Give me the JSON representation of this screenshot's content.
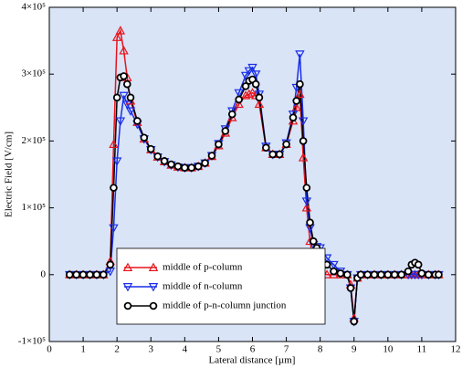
{
  "chart_data": {
    "type": "line",
    "xlabel": "Lateral distance [µm]",
    "ylabel": "Electric Field [V/cm]",
    "xlim": [
      0,
      12
    ],
    "xticks": [
      0,
      1,
      2,
      3,
      4,
      5,
      6,
      7,
      8,
      9,
      10,
      11,
      12
    ],
    "ylim": [
      -100000,
      400000
    ],
    "yticks": [
      {
        "value": -100000,
        "label": "-1×10⁵"
      },
      0,
      {
        "value": 100000,
        "label": "1×10⁵"
      },
      {
        "value": 200000,
        "label": "2×10⁵"
      },
      {
        "value": 300000,
        "label": "3×10⁵"
      },
      {
        "value": 400000,
        "label": "4×10⁵"
      }
    ],
    "legend": "lower left",
    "x": [
      0.6,
      0.8,
      1.0,
      1.2,
      1.4,
      1.6,
      1.8,
      1.9,
      2.0,
      2.1,
      2.2,
      2.3,
      2.4,
      2.6,
      2.8,
      3.0,
      3.2,
      3.4,
      3.6,
      3.8,
      4.0,
      4.2,
      4.4,
      4.6,
      4.8,
      5.0,
      5.2,
      5.4,
      5.6,
      5.8,
      5.9,
      6.0,
      6.1,
      6.2,
      6.4,
      6.6,
      6.8,
      7.0,
      7.2,
      7.3,
      7.4,
      7.5,
      7.6,
      7.7,
      7.8,
      7.9,
      8.0,
      8.2,
      8.4,
      8.6,
      8.8,
      8.9,
      9.0,
      9.1,
      9.2,
      9.4,
      9.6,
      9.8,
      10.0,
      10.2,
      10.4,
      10.6,
      10.7,
      10.8,
      10.9,
      11.0,
      11.2,
      11.4,
      11.5
    ],
    "series": [
      {
        "name": "middle of p-column",
        "color": "#e8141c",
        "marker": "triangle-up",
        "values": [
          0,
          0,
          0,
          0,
          0,
          0,
          20000,
          195000,
          355000,
          365000,
          335000,
          295000,
          260000,
          228000,
          203000,
          187000,
          176000,
          169000,
          164000,
          161000,
          160000,
          160000,
          162000,
          167000,
          177000,
          193000,
          212000,
          235000,
          255000,
          268000,
          270000,
          272000,
          268000,
          255000,
          190000,
          180000,
          180000,
          195000,
          230000,
          250000,
          270000,
          175000,
          100000,
          50000,
          20000,
          8000,
          3000,
          0,
          0,
          0,
          0,
          -15000,
          -65000,
          -5000,
          0,
          0,
          0,
          0,
          0,
          0,
          0,
          0,
          0,
          0,
          0,
          0,
          0,
          0,
          0
        ]
      },
      {
        "name": "middle of n-column",
        "color": "#1a2ee8",
        "marker": "triangle-down",
        "values": [
          0,
          0,
          0,
          0,
          0,
          0,
          5000,
          70000,
          170000,
          230000,
          268000,
          255000,
          245000,
          225000,
          203000,
          187000,
          176000,
          169000,
          164000,
          161000,
          160000,
          160000,
          162000,
          167000,
          178000,
          196000,
          218000,
          245000,
          272000,
          298000,
          305000,
          310000,
          300000,
          270000,
          192000,
          180000,
          180000,
          197000,
          240000,
          280000,
          330000,
          230000,
          110000,
          70000,
          45000,
          42000,
          40000,
          25000,
          15000,
          5000,
          0,
          -20000,
          -70000,
          -5000,
          0,
          0,
          0,
          0,
          0,
          0,
          0,
          0,
          0,
          0,
          0,
          0,
          0,
          0,
          0
        ]
      },
      {
        "name": "middle of p-n-column junction",
        "color": "#000000",
        "marker": "circle",
        "values": [
          0,
          0,
          0,
          0,
          0,
          0,
          15000,
          130000,
          265000,
          295000,
          297000,
          285000,
          265000,
          230000,
          205000,
          188000,
          177000,
          170000,
          165000,
          162000,
          160000,
          160000,
          162000,
          167000,
          178000,
          195000,
          215000,
          240000,
          262000,
          282000,
          290000,
          292000,
          285000,
          265000,
          190000,
          180000,
          180000,
          195000,
          235000,
          260000,
          285000,
          200000,
          130000,
          78000,
          50000,
          40000,
          30000,
          15000,
          5000,
          2000,
          0,
          -20000,
          -70000,
          -5000,
          0,
          0,
          0,
          0,
          0,
          0,
          0,
          5000,
          15000,
          18000,
          15000,
          2000,
          0,
          0,
          0
        ]
      }
    ]
  }
}
